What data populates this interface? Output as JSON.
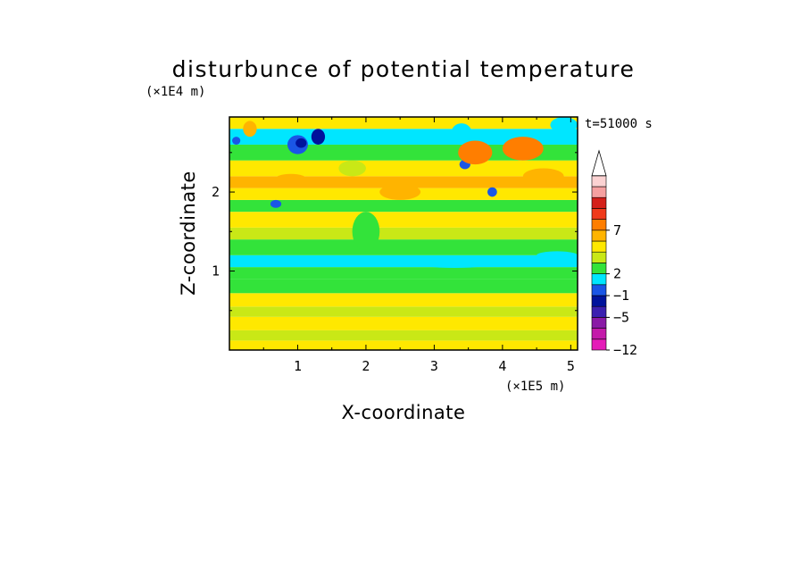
{
  "chart_data": {
    "type": "heatmap",
    "title": "disturbunce of potential temperature",
    "xlabel": "X-coordinate",
    "ylabel": "Z-coordinate",
    "x_unit": "(×1E5 m)",
    "y_unit": "(×1E4 m)",
    "annotation": "t=51000 s",
    "xlim": [
      0,
      5.1
    ],
    "ylim": [
      0,
      2.95
    ],
    "x_ticks": [
      "1",
      "2",
      "3",
      "4",
      "5"
    ],
    "y_ticks": [
      "1",
      "2"
    ],
    "colorbar": {
      "labels": [
        {
          "level": 11,
          "text": "7"
        },
        {
          "level": 7,
          "text": "2"
        },
        {
          "level": 5,
          "text": "−1"
        },
        {
          "level": 3,
          "text": "−5"
        },
        {
          "level": 0,
          "text": "−12"
        }
      ],
      "colors": [
        "#e41bb8",
        "#c41aaa",
        "#8a1aa6",
        "#3b20b0",
        "#00139c",
        "#1a56e6",
        "#00e6ff",
        "#33e33a",
        "#c9e816",
        "#ffe800",
        "#ffb400",
        "#ff7e00",
        "#f03a1a",
        "#d4201a",
        "#f5a0a0",
        "#fbd2d2"
      ],
      "extend": "max"
    },
    "bands": [
      {
        "z": [
          0.0,
          0.12
        ],
        "color": "#ffe800"
      },
      {
        "z": [
          0.12,
          0.25
        ],
        "color": "#c9e816"
      },
      {
        "z": [
          0.25,
          0.42
        ],
        "color": "#ffe800"
      },
      {
        "z": [
          0.42,
          0.55
        ],
        "color": "#c9e816"
      },
      {
        "z": [
          0.55,
          0.72
        ],
        "color": "#ffe800"
      },
      {
        "z": [
          0.72,
          0.9
        ],
        "color": "#33e33a"
      },
      {
        "z": [
          0.9,
          1.05
        ],
        "color": "#33e33a"
      },
      {
        "z": [
          1.05,
          1.2
        ],
        "color": "#00e6ff"
      },
      {
        "z": [
          1.2,
          1.4
        ],
        "color": "#33e33a"
      },
      {
        "z": [
          1.4,
          1.55
        ],
        "color": "#c9e816"
      },
      {
        "z": [
          1.55,
          1.75
        ],
        "color": "#ffe800"
      },
      {
        "z": [
          1.75,
          1.9
        ],
        "color": "#33e33a"
      },
      {
        "z": [
          1.9,
          2.05
        ],
        "color": "#ffe800"
      },
      {
        "z": [
          2.05,
          2.2
        ],
        "color": "#ffb400"
      },
      {
        "z": [
          2.2,
          2.4
        ],
        "color": "#ffe800"
      },
      {
        "z": [
          2.4,
          2.6
        ],
        "color": "#33e33a"
      },
      {
        "z": [
          2.6,
          2.8
        ],
        "color": "#00e6ff"
      },
      {
        "z": [
          2.8,
          2.95
        ],
        "color": "#ffe800"
      }
    ],
    "features": [
      {
        "x": 1.0,
        "z": 2.6,
        "rx": 0.15,
        "rz": 0.12,
        "color": "#1a56e6"
      },
      {
        "x": 1.05,
        "z": 2.62,
        "rx": 0.08,
        "rz": 0.06,
        "color": "#00139c"
      },
      {
        "x": 1.3,
        "z": 2.7,
        "rx": 0.1,
        "rz": 0.1,
        "color": "#00139c"
      },
      {
        "x": 0.1,
        "z": 2.65,
        "rx": 0.06,
        "rz": 0.05,
        "color": "#1a56e6"
      },
      {
        "x": 0.68,
        "z": 1.85,
        "rx": 0.08,
        "rz": 0.05,
        "color": "#1a56e6"
      },
      {
        "x": 3.45,
        "z": 2.35,
        "rx": 0.08,
        "rz": 0.06,
        "color": "#1a56e6"
      },
      {
        "x": 3.85,
        "z": 2.0,
        "rx": 0.07,
        "rz": 0.06,
        "color": "#1a56e6"
      },
      {
        "x": 5.0,
        "z": 2.85,
        "rx": 0.05,
        "rz": 0.06,
        "color": "#1a56e6"
      },
      {
        "x": 3.4,
        "z": 2.75,
        "rx": 0.15,
        "rz": 0.12,
        "color": "#00e6ff"
      },
      {
        "x": 4.9,
        "z": 2.85,
        "rx": 0.2,
        "rz": 0.1,
        "color": "#00e6ff"
      },
      {
        "x": 4.3,
        "z": 2.55,
        "rx": 0.3,
        "rz": 0.15,
        "color": "#ff7e00"
      },
      {
        "x": 3.6,
        "z": 2.5,
        "rx": 0.25,
        "rz": 0.15,
        "color": "#ff7e00"
      },
      {
        "x": 0.9,
        "z": 2.15,
        "rx": 0.25,
        "rz": 0.08,
        "color": "#ffb400"
      },
      {
        "x": 2.5,
        "z": 2.0,
        "rx": 0.3,
        "rz": 0.1,
        "color": "#ffb400"
      },
      {
        "x": 1.8,
        "z": 2.3,
        "rx": 0.2,
        "rz": 0.1,
        "color": "#c9e816"
      },
      {
        "x": 4.6,
        "z": 2.2,
        "rx": 0.3,
        "rz": 0.1,
        "color": "#ffb400"
      },
      {
        "x": 0.3,
        "z": 2.8,
        "rx": 0.1,
        "rz": 0.1,
        "color": "#ffb400"
      },
      {
        "x": 2.0,
        "z": 1.5,
        "rx": 0.2,
        "rz": 0.25,
        "color": "#33e33a"
      },
      {
        "x": 3.3,
        "z": 1.1,
        "rx": 0.6,
        "rz": 0.06,
        "color": "#00e6ff"
      },
      {
        "x": 4.8,
        "z": 1.2,
        "rx": 0.3,
        "rz": 0.05,
        "color": "#00e6ff"
      },
      {
        "x": 0.5,
        "z": 1.15,
        "rx": 0.4,
        "rz": 0.05,
        "color": "#00e6ff"
      }
    ]
  }
}
